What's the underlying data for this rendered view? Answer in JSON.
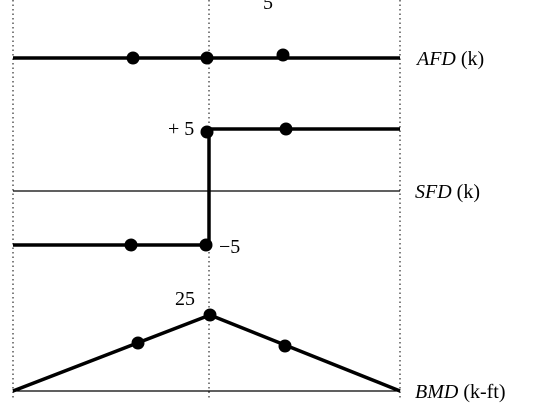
{
  "top_fragment": "5",
  "afd": {
    "label_italic": "AFD",
    "label_unit": " (k)"
  },
  "sfd": {
    "label_italic": "SFD",
    "label_unit": " (k)",
    "value_pos": "+ 5",
    "value_neg": "−5"
  },
  "bmd": {
    "label_italic": "BMD",
    "label_unit": " (k-ft)",
    "peak_value": "25"
  }
}
